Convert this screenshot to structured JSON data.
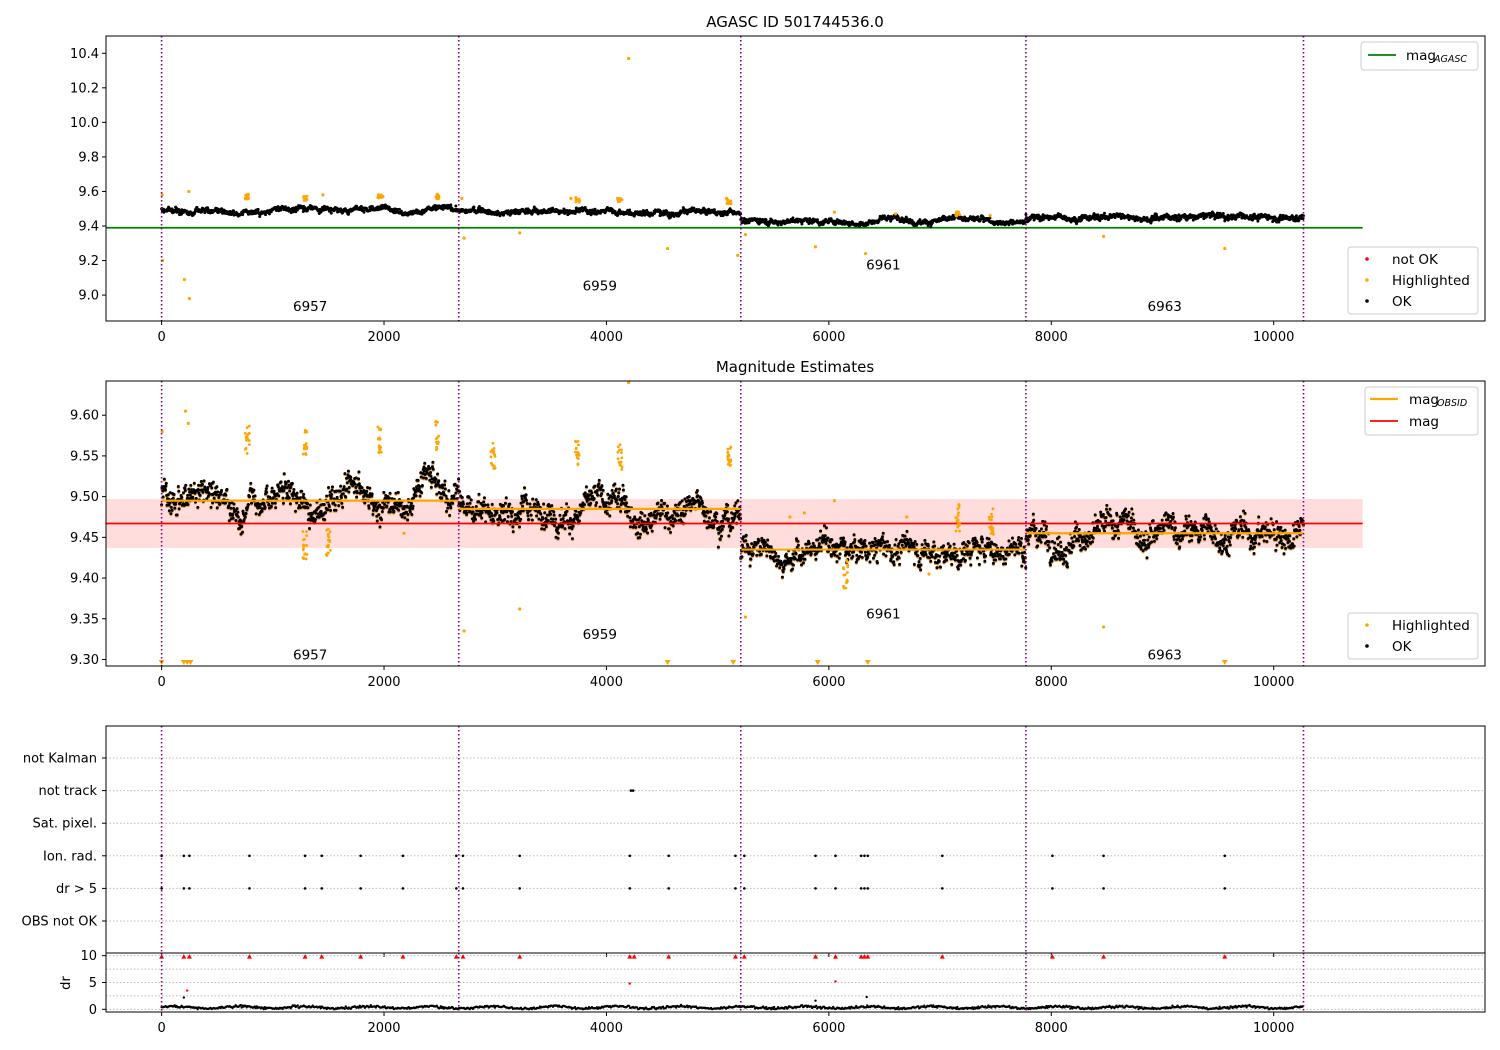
{
  "figure": {
    "title": "AGASC ID 501744536.0",
    "x_ticks": [
      "0",
      "2000",
      "4000",
      "6000",
      "8000",
      "10000"
    ],
    "obs_boundaries": [
      0,
      2672,
      5208,
      7772,
      10268
    ],
    "obsids": [
      {
        "label": "6957",
        "x": 1336
      },
      {
        "label": "6959",
        "x": 3940
      },
      {
        "label": "6961",
        "x": 6490
      },
      {
        "label": "6963",
        "x": 9020
      }
    ],
    "colors": {
      "ok": "#000000",
      "highlighted": "#ffa500",
      "not_ok": "#ff0000",
      "mag_agasc": "#008000",
      "mag_obsid": "#ffa500",
      "mag": "#ff0000",
      "mag_band": "#ffdddd",
      "obs_line": "#800080"
    }
  },
  "chart_data": [
    {
      "type": "scatter",
      "title": "AGASC ID 501744536.0",
      "xlim": [
        -500,
        11900
      ],
      "ylim": [
        8.85,
        10.5
      ],
      "y_ticks": [
        "9.0",
        "9.2",
        "9.4",
        "9.6",
        "9.8",
        "10.0",
        "10.2",
        "10.4"
      ],
      "legend_lines": [
        {
          "main": "mag",
          "sub": "AGASC"
        }
      ],
      "legend_points": [
        "not OK",
        "Highlighted",
        "OK"
      ],
      "mag_agasc": 9.39,
      "obsid_labels_y": [
        8.93,
        9.05,
        9.17,
        8.93
      ],
      "segments": [
        {
          "x0": 0,
          "x1": 2672,
          "mean": 9.495,
          "noise": 0.018
        },
        {
          "x0": 2672,
          "x1": 5208,
          "mean": 9.485,
          "noise": 0.018
        },
        {
          "x0": 5208,
          "x1": 7772,
          "mean": 9.435,
          "noise": 0.017
        },
        {
          "x0": 7772,
          "x1": 10268,
          "mean": 9.455,
          "noise": 0.02
        }
      ],
      "highlighted_points": [
        [
          5,
          9.58
        ],
        [
          10,
          9.2
        ],
        [
          205,
          9.09
        ],
        [
          245,
          9.6
        ],
        [
          250,
          8.98
        ],
        [
          770,
          9.58
        ],
        [
          780,
          9.56
        ],
        [
          1280,
          9.57
        ],
        [
          1300,
          9.55
        ],
        [
          1450,
          9.58
        ],
        [
          1950,
          9.58
        ],
        [
          1990,
          9.57
        ],
        [
          2480,
          9.58
        ],
        [
          2700,
          9.56
        ],
        [
          2720,
          9.33
        ],
        [
          3220,
          9.36
        ],
        [
          3680,
          9.56
        ],
        [
          3740,
          9.55
        ],
        [
          4100,
          9.56
        ],
        [
          4200,
          10.37
        ],
        [
          4550,
          9.27
        ],
        [
          5080,
          9.56
        ],
        [
          5120,
          9.53
        ],
        [
          5180,
          9.23
        ],
        [
          5250,
          9.35
        ],
        [
          5880,
          9.28
        ],
        [
          6050,
          9.48
        ],
        [
          6330,
          9.24
        ],
        [
          6600,
          9.47
        ],
        [
          7150,
          9.48
        ],
        [
          7450,
          9.46
        ],
        [
          8470,
          9.34
        ],
        [
          9560,
          9.27
        ]
      ],
      "bursts": [
        [
          770,
          9.57
        ],
        [
          1290,
          9.56
        ],
        [
          1960,
          9.57
        ],
        [
          2480,
          9.57
        ],
        [
          3740,
          9.55
        ],
        [
          4120,
          9.55
        ],
        [
          5100,
          9.54
        ],
        [
          7160,
          9.47
        ]
      ]
    },
    {
      "type": "scatter",
      "title": "Magnitude Estimates",
      "xlim": [
        -500,
        11900
      ],
      "ylim": [
        9.292,
        9.642
      ],
      "y_ticks": [
        "9.30",
        "9.35",
        "9.40",
        "9.45",
        "9.50",
        "9.55",
        "9.60"
      ],
      "legend_lines": [
        {
          "main": "mag",
          "sub": "OBSID"
        },
        {
          "main": "mag",
          "sub": ""
        }
      ],
      "legend_points": [
        "Highlighted",
        "OK"
      ],
      "mag": 9.467,
      "mag_band": [
        9.437,
        9.497
      ],
      "obsid_labels_y": [
        9.305,
        9.33,
        9.355,
        9.305
      ],
      "segments": [
        {
          "x0": 0,
          "x1": 2672,
          "mean": 9.495,
          "noise": 0.018
        },
        {
          "x0": 2672,
          "x1": 5208,
          "mean": 9.485,
          "noise": 0.018
        },
        {
          "x0": 5208,
          "x1": 7772,
          "mean": 9.435,
          "noise": 0.017
        },
        {
          "x0": 7772,
          "x1": 10268,
          "mean": 9.455,
          "noise": 0.02
        }
      ],
      "highlighted_points": [
        [
          5,
          9.58
        ],
        [
          215,
          9.605
        ],
        [
          240,
          9.59
        ],
        [
          2720,
          9.335
        ],
        [
          3220,
          9.362
        ],
        [
          4200,
          9.64
        ],
        [
          5250,
          9.352
        ],
        [
          6050,
          9.495
        ],
        [
          5650,
          9.475
        ],
        [
          6900,
          9.405
        ],
        [
          6700,
          9.475
        ],
        [
          7170,
          9.49
        ],
        [
          8470,
          9.34
        ],
        [
          1280,
          9.44
        ],
        [
          1500,
          9.44
        ],
        [
          2180,
          9.455
        ],
        [
          5780,
          9.48
        ]
      ],
      "bursts": [
        [
          770,
          9.57
        ],
        [
          1290,
          9.565
        ],
        [
          1960,
          9.57
        ],
        [
          2480,
          9.575
        ],
        [
          2980,
          9.55
        ],
        [
          3740,
          9.555
        ],
        [
          4120,
          9.55
        ],
        [
          5100,
          9.545
        ],
        [
          7160,
          9.47
        ],
        [
          7460,
          9.47
        ],
        [
          1290,
          9.44
        ],
        [
          1500,
          9.445
        ],
        [
          6150,
          9.405
        ]
      ],
      "lower_markers": [
        0,
        200,
        230,
        260,
        4550,
        5140,
        5900,
        6350,
        9560
      ]
    },
    {
      "type": "scatter",
      "title": "",
      "xlim": [
        -500,
        11900
      ],
      "flag_rows": [
        "not Kalman",
        "not track",
        "Sat. pixel.",
        "Ion. rad.",
        "dr > 5",
        "OBS not OK"
      ],
      "flag_points": {
        "not track": [
          4220,
          4240
        ],
        "Ion. rad.": [
          0,
          200,
          250,
          790,
          1290,
          1440,
          1790,
          2170,
          2650,
          2710,
          3220,
          4210,
          4560,
          5160,
          5240,
          5880,
          6060,
          6290,
          6320,
          6350,
          7020,
          8010,
          8470,
          9560
        ],
        "dr > 5": [
          0,
          200,
          250,
          790,
          1290,
          1440,
          1790,
          2170,
          2650,
          2710,
          3220,
          4210,
          4560,
          5160,
          5240,
          5880,
          6060,
          6290,
          6320,
          6350,
          7020,
          8010,
          8470,
          9560
        ]
      },
      "dr_ylabel": "dr",
      "dr_ylim": [
        -0.5,
        10.5
      ],
      "dr_ticks": [
        "0",
        "5",
        "10"
      ],
      "dr_clipped_x": [
        0,
        200,
        250,
        790,
        1290,
        1440,
        1790,
        2170,
        2650,
        2710,
        3220,
        4210,
        4250,
        4560,
        5160,
        5240,
        5880,
        6060,
        6290,
        6320,
        6350,
        7020,
        8010,
        8470,
        9560
      ],
      "dr_outliers": [
        [
          230,
          3.5
        ],
        [
          200,
          2.2
        ],
        [
          4210,
          4.8
        ],
        [
          6060,
          5.2
        ],
        [
          6340,
          2.3
        ],
        [
          5880,
          1.6
        ]
      ]
    }
  ]
}
